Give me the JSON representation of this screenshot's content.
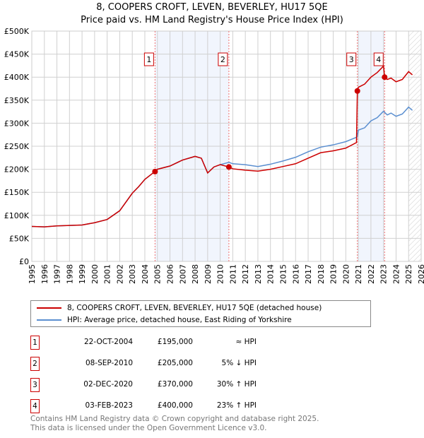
{
  "chart_data": {
    "type": "line",
    "title": "8, COOPERS CROFT, LEVEN, BEVERLEY, HU17 5QE",
    "subtitle": "Price paid vs. HM Land Registry's House Price Index (HPI)",
    "xlim": [
      1995,
      2026
    ],
    "ylim": [
      0,
      500000
    ],
    "x_ticks": [
      "1995",
      "1996",
      "1997",
      "1998",
      "1999",
      "2000",
      "2001",
      "2002",
      "2003",
      "2004",
      "2005",
      "2006",
      "2007",
      "2008",
      "2009",
      "2010",
      "2011",
      "2012",
      "2013",
      "2014",
      "2015",
      "2016",
      "2017",
      "2018",
      "2019",
      "2020",
      "2021",
      "2022",
      "2023",
      "2024",
      "2025",
      "2026"
    ],
    "y_ticks": [
      {
        "v": 0,
        "l": "£0"
      },
      {
        "v": 50000,
        "l": "£50K"
      },
      {
        "v": 100000,
        "l": "£100K"
      },
      {
        "v": 150000,
        "l": "£150K"
      },
      {
        "v": 200000,
        "l": "£200K"
      },
      {
        "v": 250000,
        "l": "£250K"
      },
      {
        "v": 300000,
        "l": "£300K"
      },
      {
        "v": 350000,
        "l": "£350K"
      },
      {
        "v": 400000,
        "l": "£400K"
      },
      {
        "v": 450000,
        "l": "£450K"
      },
      {
        "v": 500000,
        "l": "£500K"
      }
    ],
    "series": [
      {
        "name": "8, COOPERS CROFT, LEVEN, BEVERLEY, HU17 5QE (detached house)",
        "color": "#cc0000",
        "x": [
          1995,
          1996,
          1997,
          1998,
          1999,
          2000,
          2001,
          2002,
          2003,
          2003.5,
          2004,
          2004.8,
          2005,
          2006,
          2007,
          2008,
          2008.5,
          2009,
          2009.5,
          2010,
          2010.7,
          2011,
          2012,
          2013,
          2014,
          2015,
          2016,
          2017,
          2018,
          2019,
          2020,
          2020.85,
          2020.92,
          2021,
          2021.5,
          2022,
          2022.5,
          2023,
          2023.09,
          2023.3,
          2023.6,
          2024,
          2024.5,
          2025,
          2025.3
        ],
        "y": [
          76000,
          75000,
          77000,
          78000,
          79000,
          84000,
          91000,
          110000,
          148000,
          162000,
          178000,
          195000,
          200000,
          207000,
          220000,
          228000,
          224000,
          192000,
          205000,
          210000,
          205000,
          201000,
          198000,
          196000,
          200000,
          206000,
          212000,
          224000,
          236000,
          240000,
          246000,
          258000,
          370000,
          378000,
          385000,
          400000,
          410000,
          424000,
          400000,
          395000,
          398000,
          390000,
          395000,
          412000,
          405000
        ]
      },
      {
        "name": "HPI: Average price, detached house, East Riding of Yorkshire",
        "color": "#5b8fd0",
        "x": [
          1995,
          1996,
          1997,
          1998,
          1999,
          2000,
          2001,
          2002,
          2003,
          2003.5,
          2004,
          2004.8,
          2005,
          2006,
          2007,
          2008,
          2008.5,
          2009,
          2009.5,
          2010,
          2010.7,
          2011,
          2012,
          2013,
          2014,
          2015,
          2016,
          2017,
          2018,
          2019,
          2020,
          2020.9,
          2021,
          2021.5,
          2022,
          2022.5,
          2023,
          2023.3,
          2023.6,
          2024,
          2024.5,
          2025,
          2025.3
        ],
        "y": [
          76000,
          75000,
          77000,
          78000,
          79000,
          84000,
          91000,
          110000,
          148000,
          162000,
          178000,
          195000,
          200000,
          207000,
          220000,
          228000,
          224000,
          192000,
          205000,
          210000,
          215000,
          212000,
          210000,
          206000,
          211000,
          218000,
          226000,
          238000,
          248000,
          253000,
          260000,
          270000,
          285000,
          290000,
          305000,
          312000,
          326000,
          318000,
          322000,
          315000,
          320000,
          335000,
          328000
        ]
      }
    ],
    "sales": [
      {
        "n": "1",
        "x": 2004.81,
        "y": 195000
      },
      {
        "n": "2",
        "x": 2010.69,
        "y": 205000
      },
      {
        "n": "3",
        "x": 2020.92,
        "y": 370000
      },
      {
        "n": "4",
        "x": 2023.09,
        "y": 400000
      }
    ],
    "shaded": [
      [
        2004.81,
        2010.69
      ],
      [
        2020.92,
        2023.09
      ]
    ],
    "hatched_from": 2025.0
  },
  "table": [
    {
      "n": "1",
      "date": "22-OCT-2004",
      "price": "£195,000",
      "hpi": "≈ HPI"
    },
    {
      "n": "2",
      "date": "08-SEP-2010",
      "price": "£205,000",
      "hpi": "5% ↓ HPI"
    },
    {
      "n": "3",
      "date": "02-DEC-2020",
      "price": "£370,000",
      "hpi": "30% ↑ HPI"
    },
    {
      "n": "4",
      "date": "03-FEB-2023",
      "price": "£400,000",
      "hpi": "23% ↑ HPI"
    }
  ],
  "footer": {
    "line1": "Contains HM Land Registry data © Crown copyright and database right 2025.",
    "line2": "This data is licensed under the Open Government Licence v3.0."
  }
}
